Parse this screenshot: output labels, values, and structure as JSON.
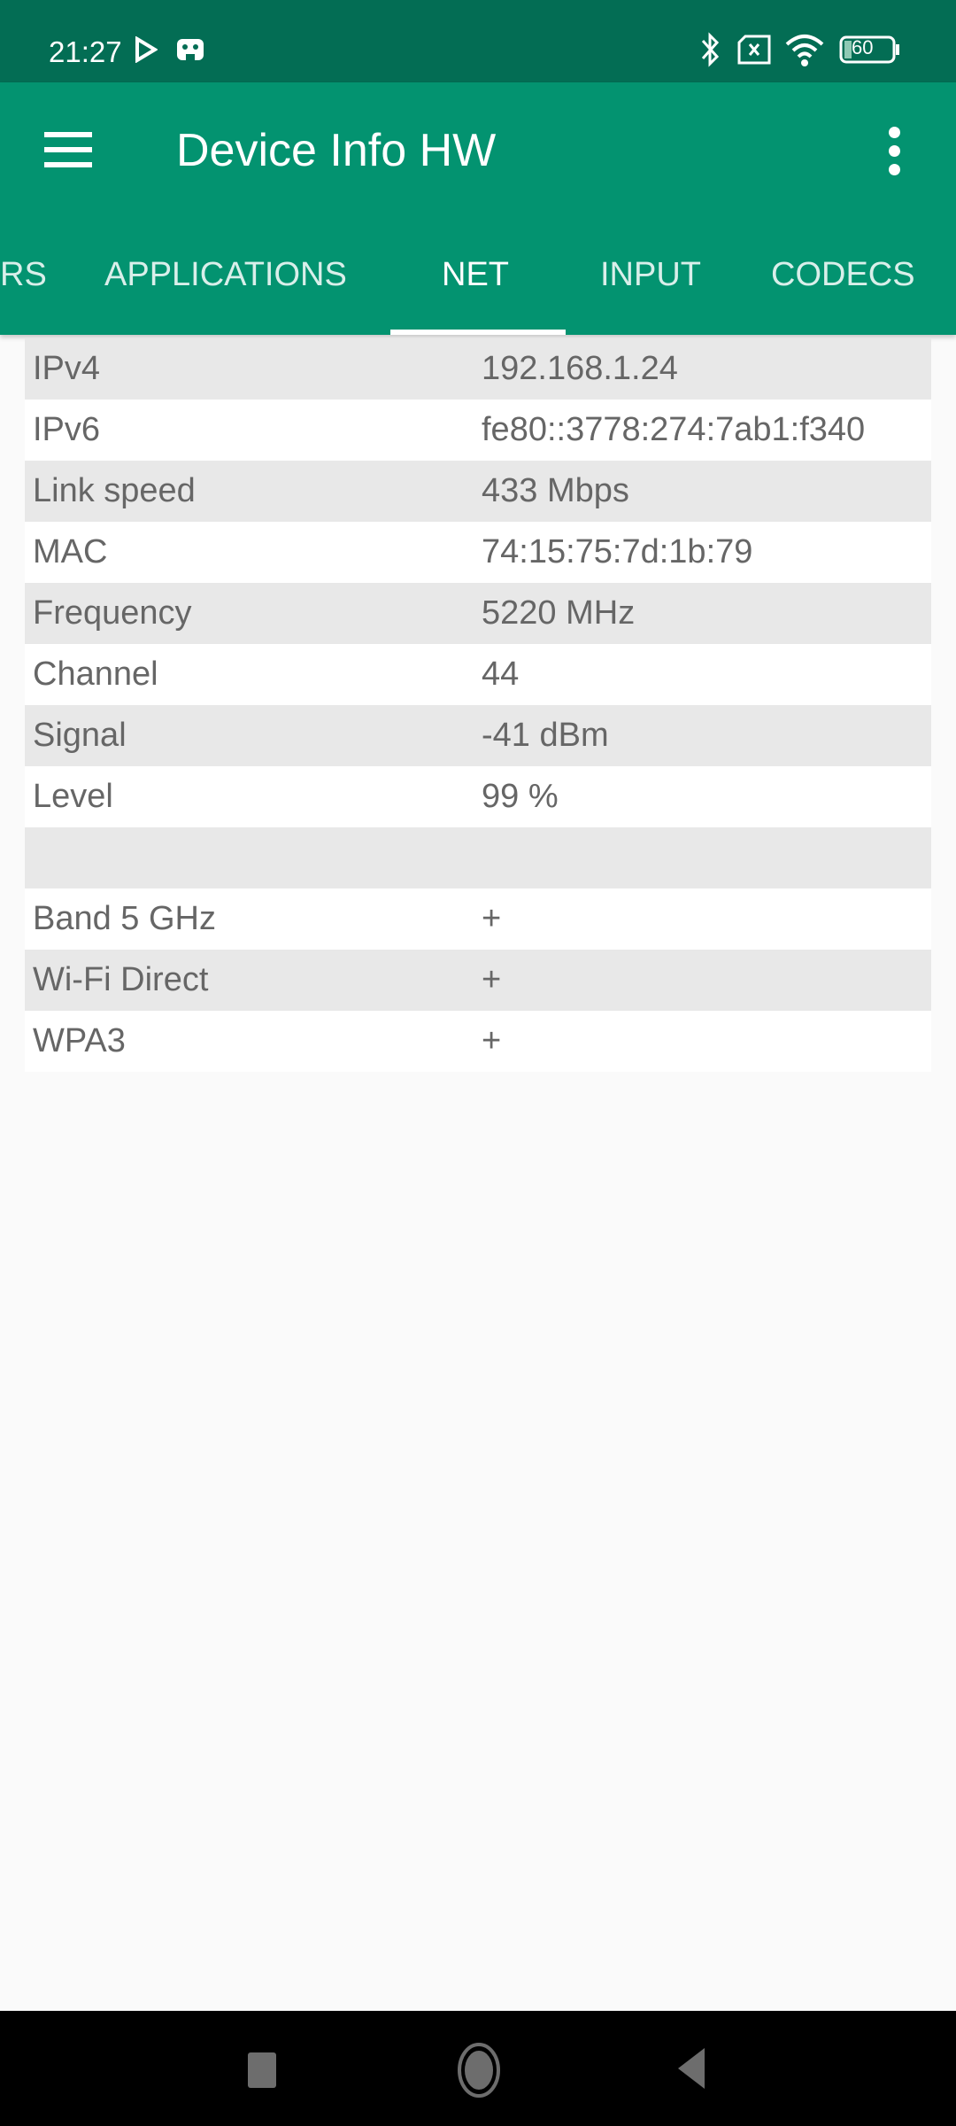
{
  "status_bar": {
    "time": "21:27",
    "battery": "60",
    "icons": [
      "play-store-icon",
      "gamepad-icon",
      "bluetooth-icon",
      "no-sim-icon",
      "wifi-icon",
      "battery-icon"
    ]
  },
  "app_bar": {
    "title": "Device Info HW",
    "menu_icon": "hamburger-icon",
    "overflow_icon": "more-vert-icon"
  },
  "tabs": [
    {
      "label": "RS"
    },
    {
      "label": "APPLICATIONS"
    },
    {
      "label": "NET",
      "active": true
    },
    {
      "label": "INPUT"
    },
    {
      "label": "CODECS"
    }
  ],
  "rows": [
    {
      "label": "IPv4",
      "value": "192.168.1.24"
    },
    {
      "label": "IPv6",
      "value": "fe80::3778:274:7ab1:f340"
    },
    {
      "label": "Link speed",
      "value": "433 Mbps"
    },
    {
      "label": "MAC",
      "value": "74:15:75:7d:1b:79"
    },
    {
      "label": "Frequency",
      "value": "5220 MHz"
    },
    {
      "label": "Channel",
      "value": "44"
    },
    {
      "label": "Signal",
      "value": "-41 dBm"
    },
    {
      "label": "Level",
      "value": "99 %"
    },
    {
      "label": "",
      "value": ""
    },
    {
      "label": "Band 5 GHz",
      "value": "+"
    },
    {
      "label": "Wi-Fi Direct",
      "value": "+"
    },
    {
      "label": "WPA3",
      "value": "+"
    }
  ],
  "colors": {
    "primary": "#039370",
    "status_bar": "#036d54",
    "row_alt": "#e8e8e8",
    "text": "#666666"
  }
}
